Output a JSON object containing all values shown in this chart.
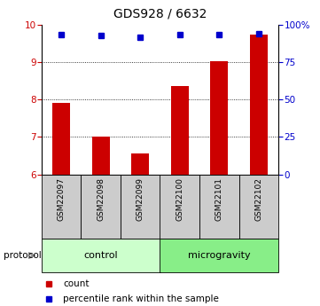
{
  "title": "GDS928 / 6632",
  "samples": [
    "GSM22097",
    "GSM22098",
    "GSM22099",
    "GSM22100",
    "GSM22101",
    "GSM22102"
  ],
  "red_values": [
    7.9,
    7.02,
    6.55,
    8.35,
    9.02,
    9.72
  ],
  "blue_values": [
    93.5,
    92.5,
    91.5,
    93.5,
    93.5,
    94.0
  ],
  "ylim_left": [
    6,
    10
  ],
  "ylim_right": [
    0,
    100
  ],
  "yticks_left": [
    6,
    7,
    8,
    9,
    10
  ],
  "yticks_right": [
    0,
    25,
    50,
    75,
    100
  ],
  "ytick_labels_right": [
    "0",
    "25",
    "50",
    "75",
    "100%"
  ],
  "groups": [
    {
      "label": "control",
      "start": 0,
      "end": 3,
      "color": "#ccffcc"
    },
    {
      "label": "microgravity",
      "start": 3,
      "end": 6,
      "color": "#88ee88"
    }
  ],
  "bar_color": "#cc0000",
  "dot_color": "#0000cc",
  "baseline": 6,
  "legend_count_color": "#cc0000",
  "legend_pct_color": "#0000cc",
  "ylabel_left_color": "#cc0000",
  "ylabel_right_color": "#0000cc",
  "grid_yticks": [
    7,
    8,
    9
  ],
  "sample_box_color": "#cccccc",
  "bar_width": 0.45
}
